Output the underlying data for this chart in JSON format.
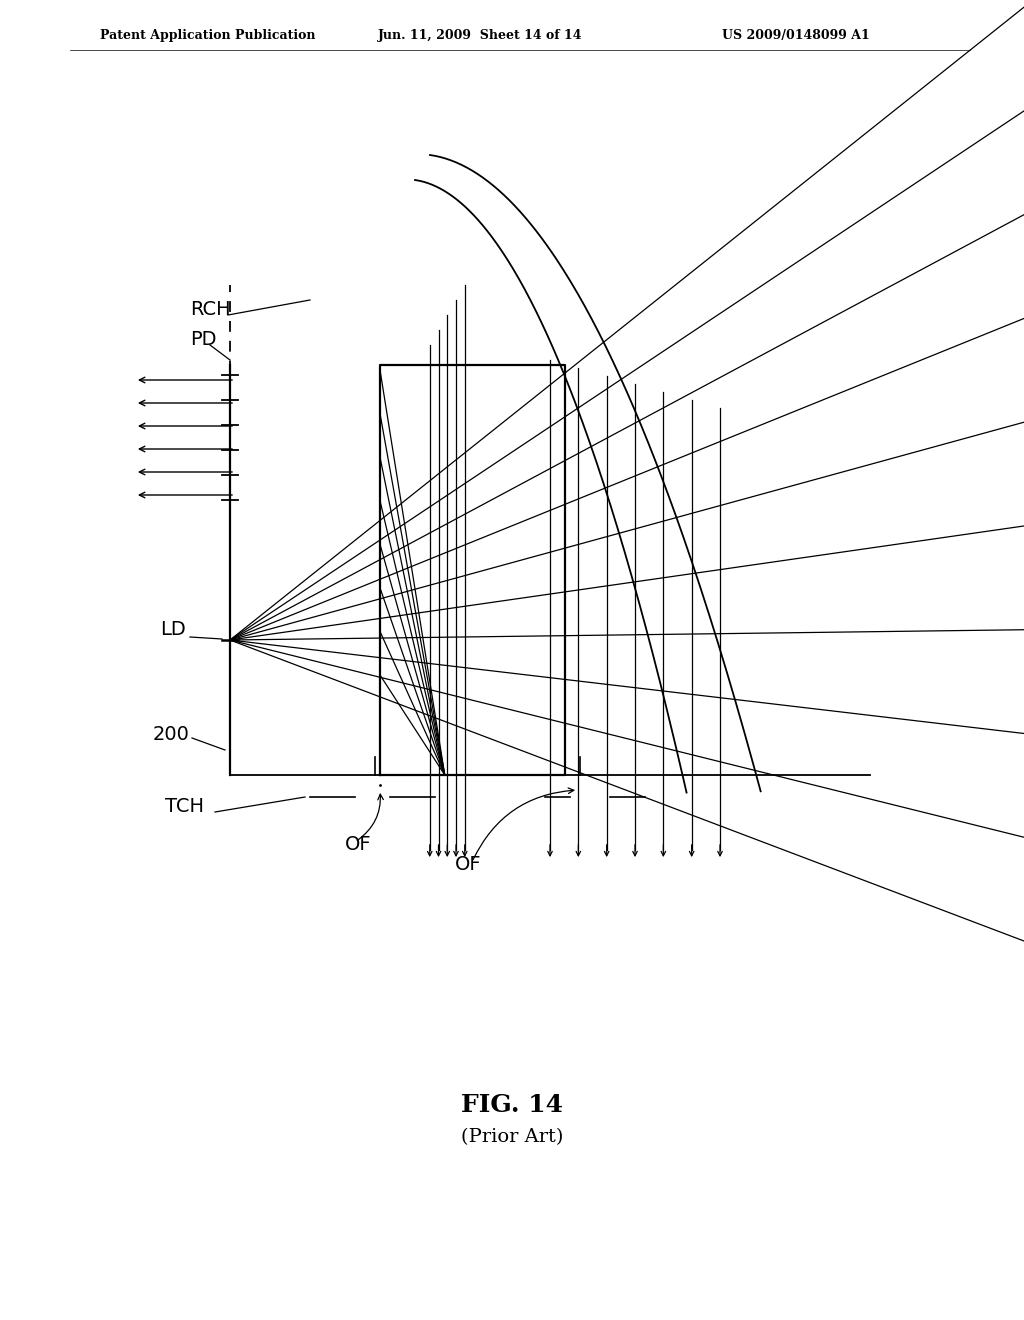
{
  "title": "FIG. 14",
  "subtitle": "(Prior Art)",
  "patent_header_left": "Patent Application Publication",
  "patent_header_mid": "Jun. 11, 2009  Sheet 14 of 14",
  "patent_header_right": "US 2009/0148099 A1",
  "bg_color": "#ffffff",
  "line_color": "#000000"
}
